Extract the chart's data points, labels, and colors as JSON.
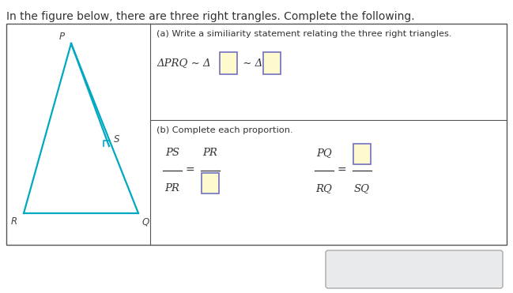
{
  "title": "In the figure below, there are three right trangles. Complete the following.",
  "title_fontsize": 10,
  "bg_color": "#ffffff",
  "text_color": "#333333",
  "triangle_color": "#00a8c0",
  "triangle_lw": 1.6,
  "input_box_fill": "#fffacd",
  "input_box_edge": "#7070c0",
  "input_box_fill_a": "#fffacd",
  "input_box_edge_a": "#7070c0",
  "bottom_box_fill": "#e8eaec",
  "bottom_box_edge": "#aaaaaa",
  "divider_color": "#555555",
  "label_color": "#444444",
  "label_fontsize": 8.5,
  "part_a_header": "(a) Write a similiarity statement relating the three right triangles.",
  "part_b_header": "(b) Complete each proportion.",
  "similarity_text": "ΔPRQ ∼ Δ",
  "sim_tilde": " ∼ Δ",
  "frac1_top": "PS",
  "frac1_bot": "PR",
  "frac2_top": "PR",
  "frac3_top": "PQ",
  "frac3_bot": "RQ",
  "frac4_bot": "SQ",
  "btn_x": "×",
  "btn_r": "↺",
  "btn_q": "?"
}
